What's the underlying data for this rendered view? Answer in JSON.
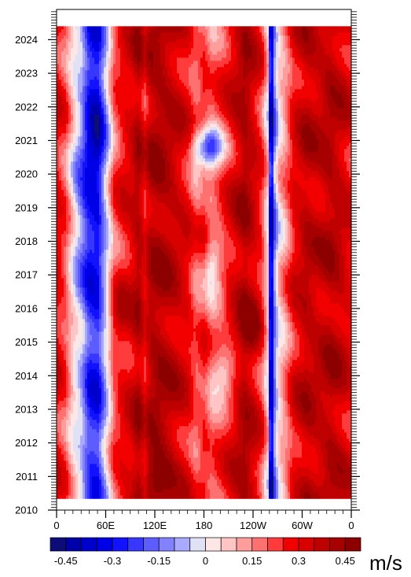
{
  "chart_data": {
    "type": "heatmap",
    "title": "",
    "xlabel": "",
    "ylabel": "",
    "units": "m/s",
    "x_ticks": [
      "0",
      "60E",
      "120E",
      "180",
      "120W",
      "60W",
      "0"
    ],
    "y_ticks": [
      "2010",
      "2011",
      "2012",
      "2013",
      "2014",
      "2015",
      "2016",
      "2017",
      "2018",
      "2019",
      "2020",
      "2021",
      "2022",
      "2023",
      "2024"
    ],
    "x_range_lon_east": [
      0,
      360
    ],
    "y_range_year": [
      2010,
      2024.9
    ],
    "data_time_span": [
      "2010.4",
      "2024.4"
    ],
    "colorbar": {
      "levels": [
        -0.5,
        -0.45,
        -0.4,
        -0.35,
        -0.3,
        -0.25,
        -0.2,
        -0.15,
        -0.1,
        -0.05,
        0,
        0.05,
        0.1,
        0.15,
        0.2,
        0.25,
        0.3,
        0.35,
        0.4,
        0.45,
        0.5
      ],
      "tick_labels": [
        "-0.45",
        "-0.3",
        "-0.15",
        "0",
        "0.15",
        "0.3",
        "0.45"
      ],
      "tick_values": [
        -0.45,
        -0.3,
        -0.15,
        0,
        0.15,
        0.3,
        0.45
      ],
      "colors": [
        "#0d0d7a",
        "#0000a8",
        "#0000cc",
        "#0000e6",
        "#1212ff",
        "#3737ff",
        "#5c5cff",
        "#8282ff",
        "#a9a9ff",
        "#e1e1f5",
        "#fde6e6",
        "#ffc4c4",
        "#ff9c9c",
        "#ff7070",
        "#ff3b3b",
        "#f20000",
        "#d90000",
        "#bf0000",
        "#a60000",
        "#8c0000"
      ]
    },
    "zonal_profile": {
      "lon": [
        0,
        10,
        20,
        30,
        40,
        50,
        60,
        70,
        80,
        90,
        100,
        108,
        115,
        125,
        140,
        160,
        170,
        180,
        190,
        200,
        215,
        230,
        240,
        250,
        258,
        262,
        266,
        272,
        280,
        290,
        305,
        320,
        335,
        350,
        360
      ],
      "value": [
        0.3,
        0.22,
        0.05,
        -0.05,
        -0.25,
        -0.28,
        -0.05,
        0.2,
        0.28,
        0.32,
        0.4,
        0.3,
        0.4,
        0.42,
        0.38,
        0.3,
        0.2,
        0.25,
        0.18,
        0.22,
        0.32,
        0.42,
        0.35,
        0.25,
        0.05,
        -0.48,
        -0.15,
        0.05,
        0.15,
        0.3,
        0.38,
        0.36,
        0.4,
        0.35,
        0.3
      ]
    },
    "anomalies": [
      {
        "lon": 185,
        "year": 2020.8,
        "amp": -0.45,
        "rx": 18,
        "ry": 0.6
      },
      {
        "lon": 205,
        "year": 2014.2,
        "amp": -0.22,
        "rx": 16,
        "ry": 0.8
      },
      {
        "lon": 190,
        "year": 2017.3,
        "amp": -0.18,
        "rx": 12,
        "ry": 0.9
      },
      {
        "lon": 50,
        "year": 2021.5,
        "amp": -0.12,
        "rx": 15,
        "ry": 2.2
      },
      {
        "lon": 120,
        "year": 2011.0,
        "amp": 0.15,
        "rx": 20,
        "ry": 0.7
      },
      {
        "lon": 240,
        "year": 2015.5,
        "amp": 0.12,
        "rx": 12,
        "ry": 0.8
      },
      {
        "lon": 75,
        "year": 2015.8,
        "amp": 0.1,
        "rx": 10,
        "ry": 1.0
      },
      {
        "lon": 30,
        "year": 2019.0,
        "amp": -0.12,
        "rx": 10,
        "ry": 2.5
      }
    ]
  }
}
